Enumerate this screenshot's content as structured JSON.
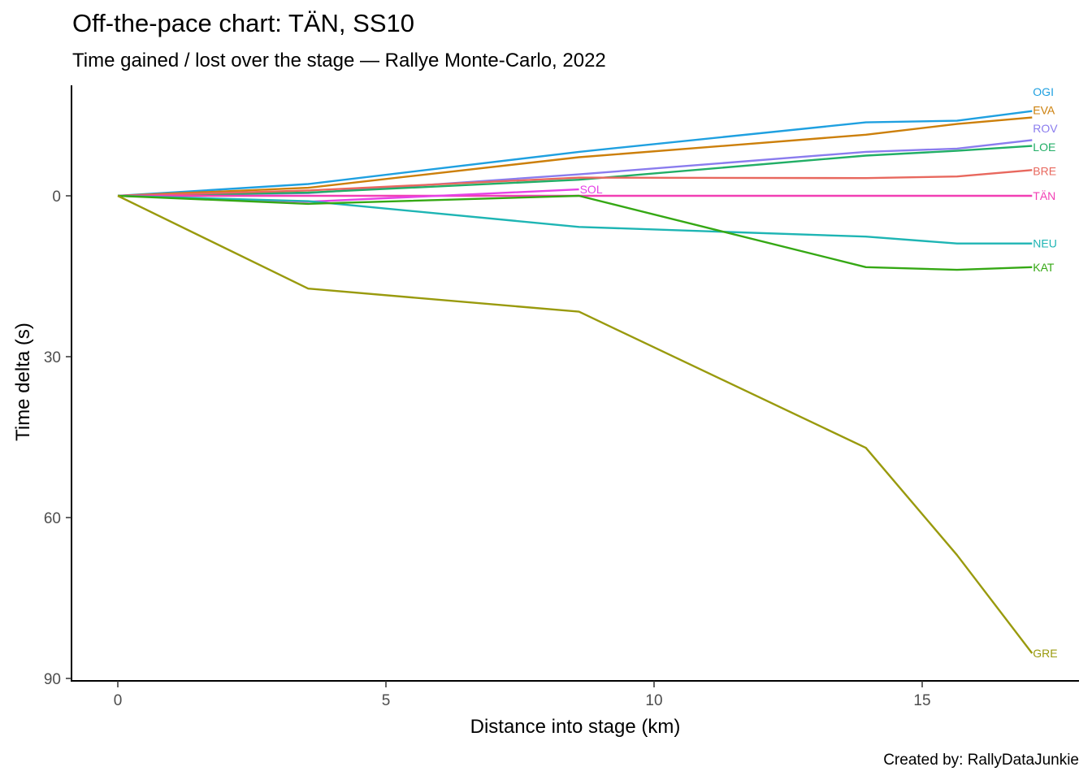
{
  "chart_data": {
    "type": "line",
    "title": "Off-the-pace chart: TÄN, SS10",
    "subtitle": "Time gained / lost over the stage — Rallye Monte-Carlo, 2022",
    "xlabel": "Distance into stage (km)",
    "ylabel": "Time delta (s)",
    "caption": "Created by: RallyDataJunkie",
    "xlim": [
      -0.9,
      17.8
    ],
    "ylim": [
      -20,
      90
    ],
    "y_reversed": true,
    "x_ticks": [
      0,
      5,
      10,
      15
    ],
    "y_ticks": [
      0,
      30,
      60,
      90
    ],
    "x_tick_labels": [
      "0",
      "5",
      "10",
      "15"
    ],
    "y_tick_labels": [
      "0",
      "30",
      "60",
      "90"
    ],
    "grid": false,
    "legend": "direct labels at line ends",
    "series": [
      {
        "name": "OGI",
        "color": "#1fa0e0",
        "x": [
          0,
          3.55,
          8.6,
          13.95,
          15.65,
          17.05
        ],
        "y": [
          0,
          -2.2,
          -8.2,
          -13.7,
          -14.0,
          -15.8
        ],
        "label_y": -19.4
      },
      {
        "name": "EVA",
        "color": "#cc7f0a",
        "x": [
          0,
          3.55,
          8.6,
          13.95,
          15.65,
          17.05
        ],
        "y": [
          0,
          -1.5,
          -7.2,
          -11.4,
          -13.4,
          -14.6
        ],
        "label_y": -16.0
      },
      {
        "name": "ROV",
        "color": "#8a7cee",
        "x": [
          0,
          3.55,
          8.6,
          13.95,
          15.65,
          17.05
        ],
        "y": [
          0,
          -0.5,
          -4.0,
          -8.2,
          -8.8,
          -10.4
        ],
        "label_y": -12.6
      },
      {
        "name": "LOE",
        "color": "#21ae66",
        "x": [
          0,
          3.55,
          8.6,
          13.95,
          15.65,
          17.05
        ],
        "y": [
          0,
          -0.6,
          -3.0,
          -7.5,
          -8.4,
          -9.3
        ],
        "label_y": -9.1
      },
      {
        "name": "BRE",
        "color": "#e8685e",
        "x": [
          0,
          3.55,
          8.6,
          13.95,
          15.65,
          17.05
        ],
        "y": [
          0,
          -1.0,
          -3.4,
          -3.3,
          -3.6,
          -4.8
        ],
        "label_y": -4.6
      },
      {
        "name": "TÄN",
        "color": "#f23fb4",
        "x": [
          0,
          3.55,
          8.6,
          13.95,
          15.65,
          17.05
        ],
        "y": [
          0,
          0,
          0,
          0,
          0,
          0
        ],
        "label_y": 0
      },
      {
        "name": "SOL",
        "color": "#e543e6",
        "x": [
          0,
          3.55,
          8.6
        ],
        "y": [
          0,
          1.1,
          -1.2
        ],
        "label_y": -1.2
      },
      {
        "name": "NEU",
        "color": "#1eb5b4",
        "x": [
          0,
          3.55,
          8.6,
          13.95,
          15.65,
          17.05
        ],
        "y": [
          0,
          1.0,
          5.8,
          7.6,
          8.9,
          8.9
        ],
        "label_y": 8.9
      },
      {
        "name": "KAT",
        "color": "#35a814",
        "x": [
          0,
          3.55,
          8.6,
          13.95,
          15.65,
          17.05
        ],
        "y": [
          0,
          1.5,
          0.0,
          13.3,
          13.8,
          13.3
        ],
        "label_y": 13.3
      },
      {
        "name": "GRE",
        "color": "#999a0d",
        "x": [
          0,
          3.55,
          8.6,
          13.95,
          15.65,
          17.05
        ],
        "y": [
          0,
          17.3,
          21.6,
          47.0,
          67.0,
          85.3
        ],
        "label_y": 85.3
      }
    ]
  }
}
